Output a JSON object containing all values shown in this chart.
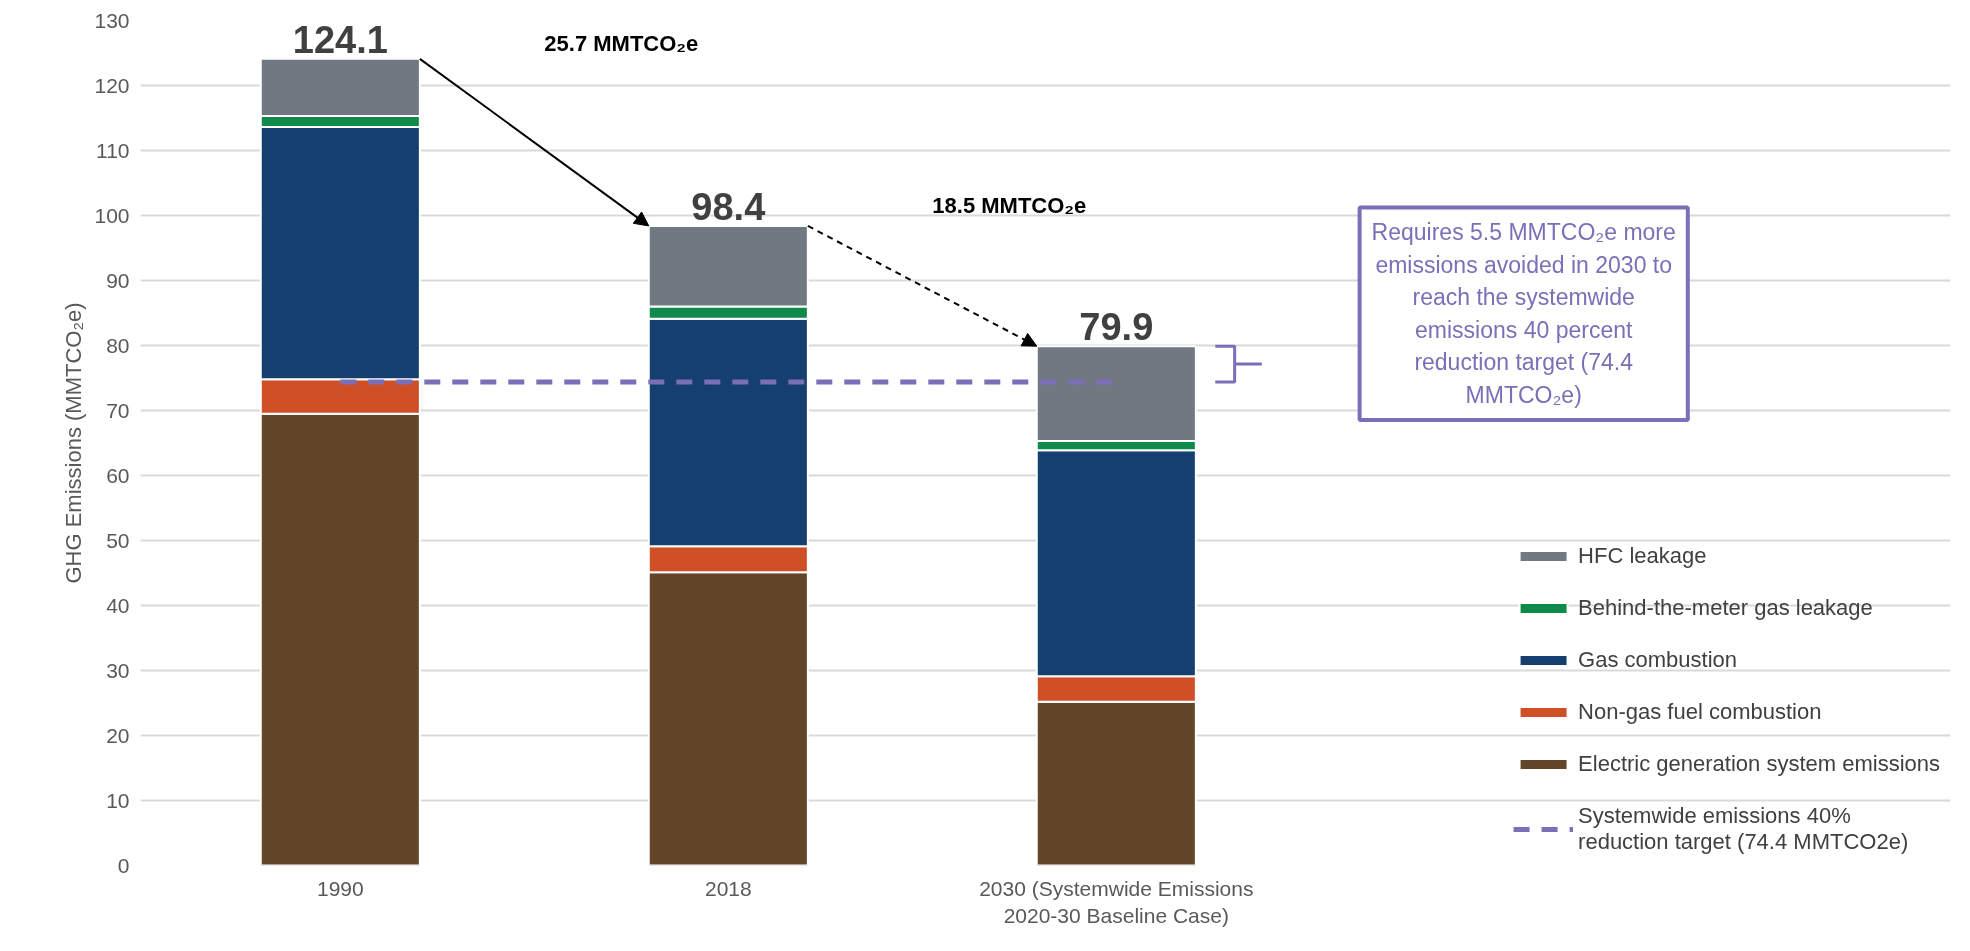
{
  "chart_data": {
    "type": "bar",
    "stacked": true,
    "ylabel": "GHG Emissions (MMTCO₂e)",
    "categories": [
      "1990",
      "2018",
      "2030 (Systemwide Emissions 2020-30 Baseline Case)"
    ],
    "series": [
      {
        "name": "Electric generation system emissions",
        "color": "#634629",
        "values": [
          69.5,
          45.1,
          25.2
        ]
      },
      {
        "name": "Non-gas fuel combustion",
        "color": "#cf4f27",
        "values": [
          5.3,
          4.0,
          3.9
        ]
      },
      {
        "name": "Gas combustion",
        "color": "#143f6e",
        "values": [
          38.8,
          35.0,
          34.8
        ]
      },
      {
        "name": "Behind-the-meter gas leakage",
        "color": "#0e8a4a",
        "values": [
          1.7,
          1.9,
          1.4
        ]
      },
      {
        "name": "HFC leakage",
        "color": "#707882",
        "values": [
          8.8,
          12.4,
          14.6
        ]
      }
    ],
    "totals": [
      "124.1",
      "98.4",
      "79.9"
    ],
    "ylim": [
      0,
      130
    ],
    "yticks": [
      0,
      10,
      20,
      30,
      40,
      50,
      60,
      70,
      80,
      90,
      100,
      110,
      120,
      130
    ],
    "grid": "y",
    "legend": "right",
    "ref_lines": [
      {
        "axis": "y",
        "value": 74.4,
        "label": "Systemwide emissions 40% reduction target (74.4 MMTCO2e)",
        "color": "#7b6fb8",
        "line_style": "dashed"
      }
    ],
    "annotations": [
      "25.7 MMTCO₂e",
      "18.5 MMTCO₂e",
      "Requires 5.5 MMTCO₂e more emissions avoided in 2030 to reach the systemwide emissions 40 percent reduction target (74.4 MMTCO₂e)"
    ]
  }
}
